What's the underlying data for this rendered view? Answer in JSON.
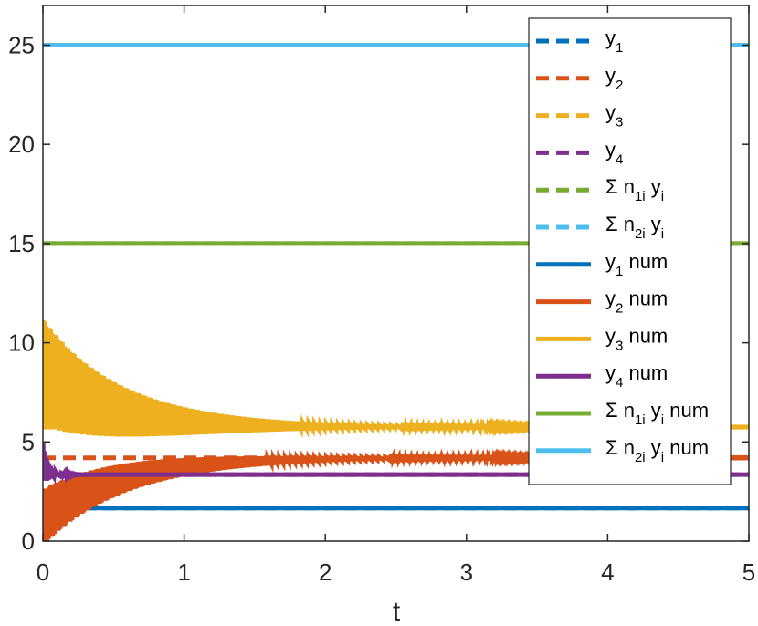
{
  "chart_data": {
    "type": "line",
    "xlabel": "t",
    "ylabel": "",
    "xlim": [
      0,
      5
    ],
    "ylim": [
      0,
      27
    ],
    "xticks": [
      0,
      1,
      2,
      3,
      4,
      5
    ],
    "xtick_labels": [
      "0",
      "1",
      "2",
      "3",
      "4",
      "5"
    ],
    "yticks": [
      0,
      5,
      10,
      15,
      20,
      25
    ],
    "ytick_labels": [
      "0",
      "5",
      "10",
      "15",
      "20",
      "25"
    ],
    "grid": false,
    "legend_position": "top-right",
    "series": [
      {
        "name": "y1",
        "legend": [
          "y",
          "1",
          ""
        ],
        "style": "dashed",
        "color": "#0072BD",
        "equilibrium": 1.67
      },
      {
        "name": "y2",
        "legend": [
          "y",
          "2",
          ""
        ],
        "style": "dashed",
        "color": "#D95319",
        "equilibrium": 4.2
      },
      {
        "name": "y3",
        "legend": [
          "y",
          "3",
          ""
        ],
        "style": "dashed",
        "color": "#EDB120",
        "equilibrium": 5.75
      },
      {
        "name": "y4",
        "legend": [
          "y",
          "4",
          ""
        ],
        "style": "dashed",
        "color": "#7E2F8E",
        "equilibrium": 3.35
      },
      {
        "name": "Σ n1i yi",
        "legend": [
          "Σ n",
          "1i",
          " y",
          "i",
          ""
        ],
        "style": "dashed",
        "color": "#77AC30",
        "value": 15
      },
      {
        "name": "Σ n2i yi",
        "legend": [
          "Σ n",
          "2i",
          " y",
          "i",
          ""
        ],
        "style": "dashed",
        "color": "#4DBEEE",
        "value": 25
      },
      {
        "name": "y1 num",
        "legend": [
          "y",
          "1",
          " num"
        ],
        "style": "solid",
        "color": "#0072BD",
        "start": 1.2,
        "end": 1.67,
        "amp0": 0.9,
        "tau": 0.03
      },
      {
        "name": "y2 num",
        "legend": [
          "y",
          "2",
          " num"
        ],
        "style": "solid",
        "color": "#D95319",
        "start": 1.2,
        "end": 4.2,
        "amp0": 1.4,
        "tau": 0.9
      },
      {
        "name": "y3 num",
        "legend": [
          "y",
          "3",
          " num"
        ],
        "style": "solid",
        "color": "#EDB120",
        "start": 8.5,
        "end": 5.75,
        "amp0": 2.7,
        "tau": 0.75
      },
      {
        "name": "y4 num",
        "legend": [
          "y",
          "4",
          " num"
        ],
        "style": "solid",
        "color": "#7E2F8E",
        "start": 4.0,
        "end": 3.35,
        "amp0": 1.0,
        "tau": 0.05
      },
      {
        "name": "Σ n1i yi num",
        "legend": [
          "Σ n",
          "1i",
          " y",
          "i",
          " num"
        ],
        "style": "solid",
        "color": "#77AC30",
        "value": 15
      },
      {
        "name": "Σ n2i yi num",
        "legend": [
          "Σ n",
          "2i",
          " y",
          "i",
          " num"
        ],
        "style": "solid",
        "color": "#4DBEEE",
        "value": 25
      }
    ]
  }
}
